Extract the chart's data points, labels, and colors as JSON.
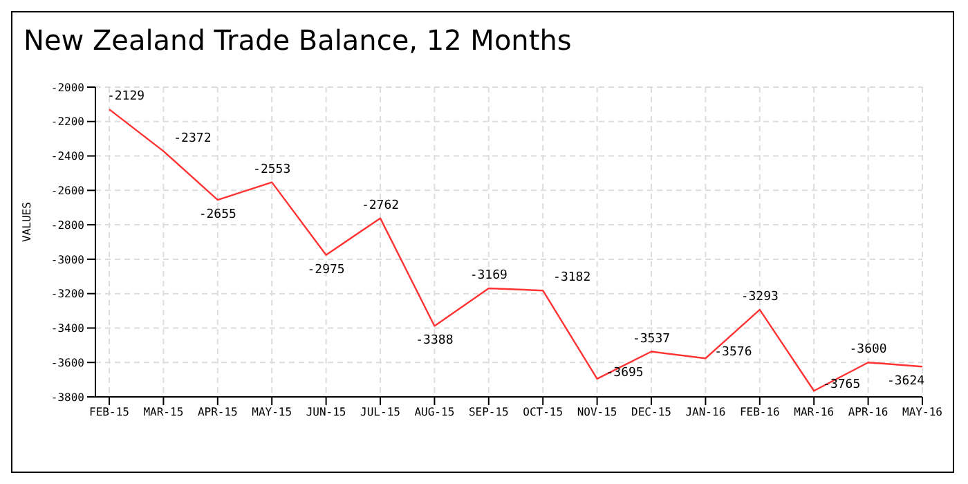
{
  "chart_data": {
    "type": "line",
    "title": "New Zealand Trade Balance, 12 Months",
    "ylabel": "VALUES",
    "categories": [
      "FEB-15",
      "MAR-15",
      "APR-15",
      "MAY-15",
      "JUN-15",
      "JUL-15",
      "AUG-15",
      "SEP-15",
      "OCT-15",
      "NOV-15",
      "DEC-15",
      "JAN-16",
      "FEB-16",
      "MAR-16",
      "APR-16",
      "MAY-16"
    ],
    "series": [
      {
        "color": "#ff3333",
        "values": [
          -2129,
          -2372,
          -2655,
          -2553,
          -2975,
          -2762,
          -3388,
          -3169,
          -3182,
          -3695,
          -3537,
          -3576,
          -3293,
          -3765,
          -3600,
          -3624
        ]
      }
    ],
    "ylim": [
      -3800,
      -2000
    ],
    "yticks": [
      -3800,
      -3600,
      -3400,
      -3200,
      -3000,
      -2800,
      -2600,
      -2400,
      -2200,
      -2000
    ],
    "grid": true,
    "data_labels": true,
    "marker": "none",
    "line_style": "solid"
  }
}
